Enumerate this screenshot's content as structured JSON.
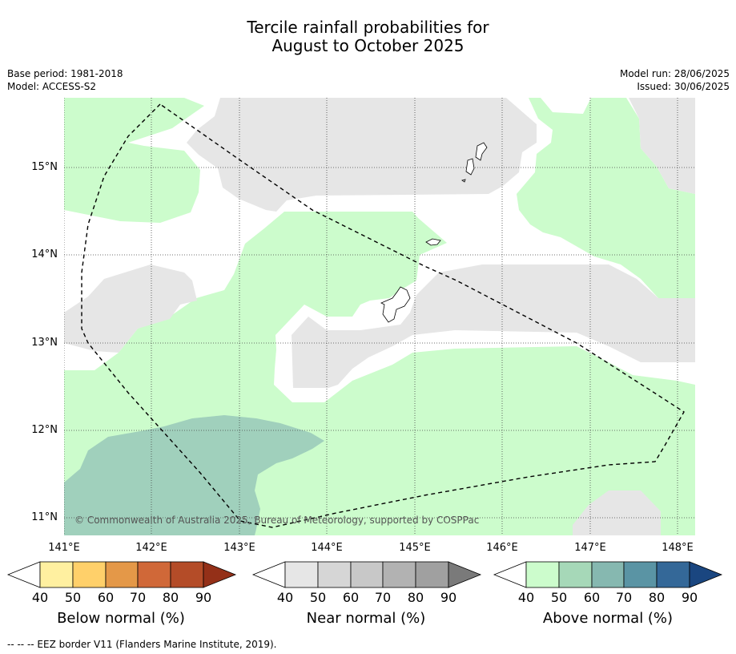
{
  "title_line1": "Tercile rainfall probabilities for",
  "title_line2": "August to October 2025",
  "meta": {
    "base_period": "Base period: 1981-2018",
    "model": "Model: ACCESS-S2",
    "model_run": "Model run: 28/06/2025",
    "issued": "Issued: 30/06/2025"
  },
  "lat_labels": [
    "15°N",
    "14°N",
    "13°N",
    "12°N",
    "11°N"
  ],
  "lon_labels": [
    "141°E",
    "142°E",
    "143°E",
    "144°E",
    "145°E",
    "146°E",
    "147°E",
    "148°E"
  ],
  "copyright": "© Commonwealth of Australia 2025, Bureau of Meteorology, supported by COSPPac",
  "colorbars": [
    {
      "label": "Below normal (%)",
      "ticks": [
        "40",
        "50",
        "60",
        "70",
        "80",
        "90"
      ],
      "colors": [
        "#ffffff",
        "#fff0a0",
        "#ffd06a",
        "#e49848",
        "#d06838",
        "#b44c28",
        "#943018"
      ]
    },
    {
      "label": "Near normal (%)",
      "ticks": [
        "40",
        "50",
        "60",
        "70",
        "80",
        "90"
      ],
      "colors": [
        "#ffffff",
        "#e6e6e6",
        "#d6d6d6",
        "#c8c8c8",
        "#b2b2b2",
        "#a0a0a0",
        "#7a7a7a"
      ]
    },
    {
      "label": "Above normal (%)",
      "ticks": [
        "40",
        "50",
        "60",
        "70",
        "80",
        "90"
      ],
      "colors": [
        "#ffffff",
        "#ccfccc",
        "#a6d8b8",
        "#86b8b0",
        "#5a94a4",
        "#346898",
        "#1a4680"
      ]
    }
  ],
  "footer": "--  --  -- EEZ border V11 (Flanders Marine Institute, 2019).",
  "legend_colors": {
    "above_40_50": "#ccfccc",
    "above_50_60": "#a0d0bc",
    "near_40_50": "#e6e6e6"
  }
}
